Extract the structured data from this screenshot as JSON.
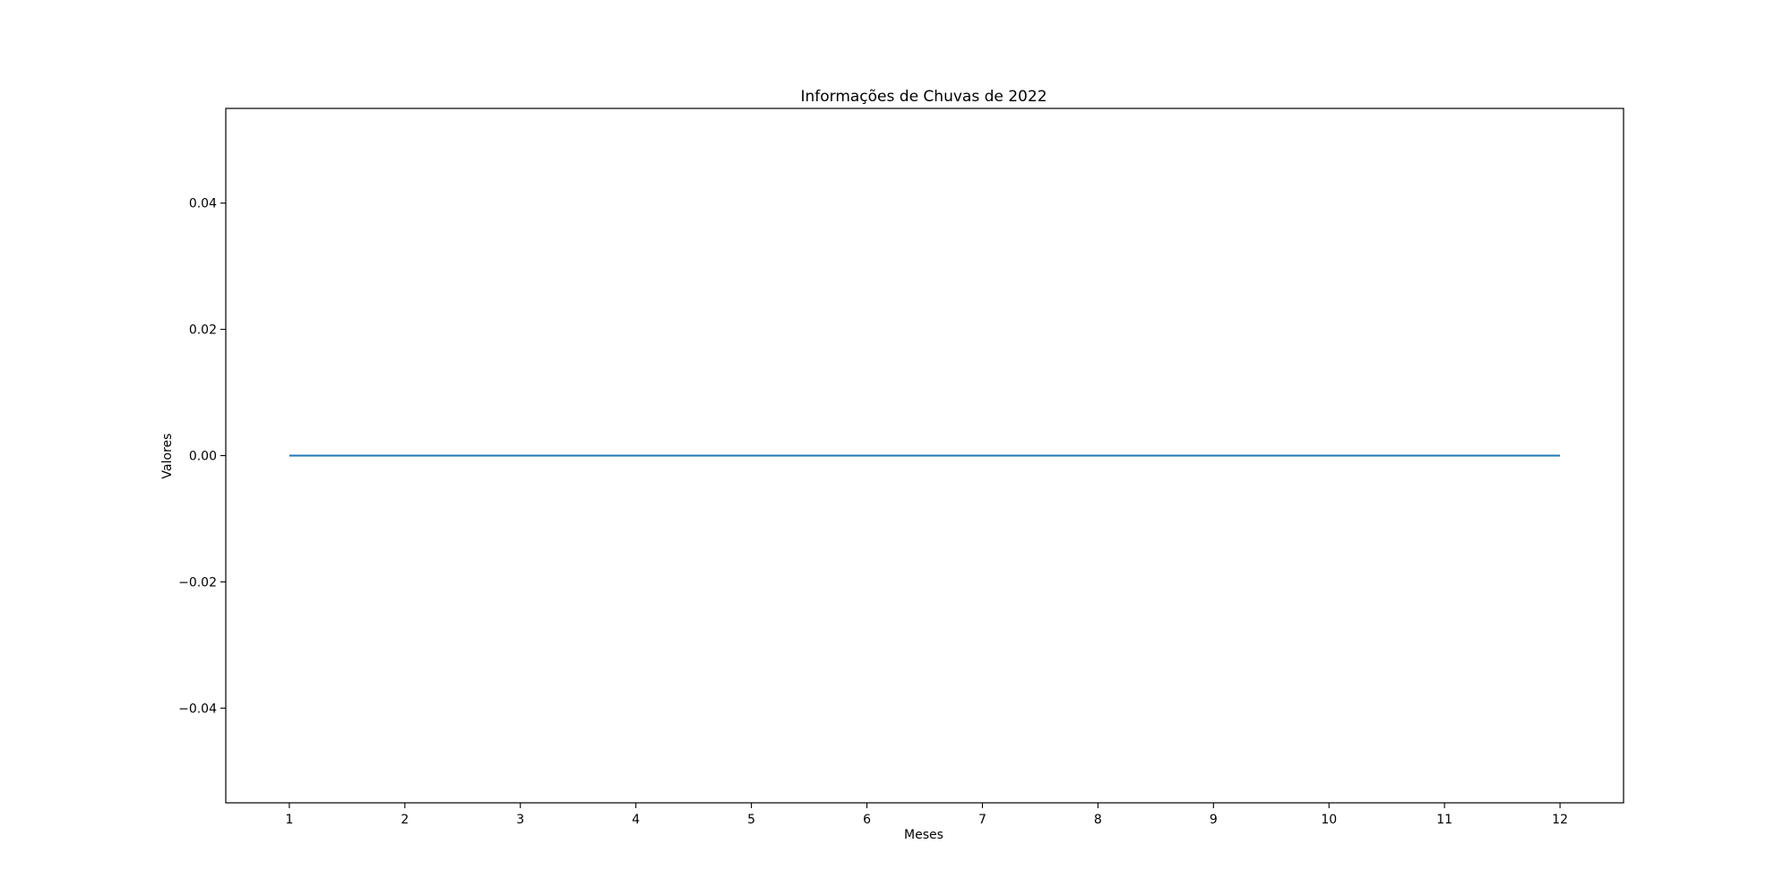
{
  "chart_data": {
    "type": "line",
    "title": "Informações de Chuvas de 2022",
    "xlabel": "Meses",
    "ylabel": "Valores",
    "x": [
      1,
      2,
      3,
      4,
      5,
      6,
      7,
      8,
      9,
      10,
      11,
      12
    ],
    "series": [
      {
        "values": [
          0,
          0,
          0,
          0,
          0,
          0,
          0,
          0,
          0,
          0,
          0,
          0
        ],
        "color": "#1f77b4"
      }
    ],
    "xticks": [
      1,
      2,
      3,
      4,
      5,
      6,
      7,
      8,
      9,
      10,
      11,
      12
    ],
    "yticks": [
      {
        "value": -0.04,
        "label": "−0.04"
      },
      {
        "value": -0.02,
        "label": "−0.02"
      },
      {
        "value": 0.0,
        "label": "0.00"
      },
      {
        "value": 0.02,
        "label": "0.02"
      },
      {
        "value": 0.04,
        "label": "0.04"
      }
    ],
    "xlim": [
      0.45,
      12.55
    ],
    "ylim": [
      -0.055,
      0.055
    ],
    "grid": false,
    "legend": false
  }
}
